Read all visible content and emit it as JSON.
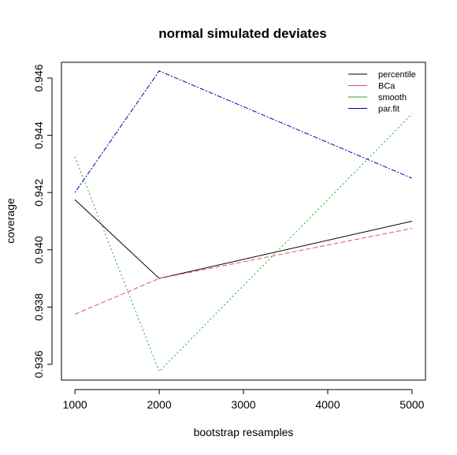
{
  "chart_data": {
    "type": "line",
    "title": "normal simulated deviates",
    "xlabel": "bootstrap resamples",
    "ylabel": "coverage",
    "x": [
      1000,
      2000,
      5000
    ],
    "x_ticks": [
      1000,
      2000,
      3000,
      4000,
      5000
    ],
    "x_tick_labels": [
      "1000",
      "2000",
      "3000",
      "4000",
      "5000"
    ],
    "y_ticks": [
      0.936,
      0.938,
      0.94,
      0.942,
      0.944,
      0.946
    ],
    "y_tick_labels": [
      "0.936",
      "0.938",
      "0.940",
      "0.942",
      "0.944",
      "0.946"
    ],
    "xlim": [
      840,
      5160
    ],
    "ylim": [
      0.93545,
      0.94655
    ],
    "grid": false,
    "legend_position": "top-right",
    "series": [
      {
        "name": "percentile",
        "color": "#000000",
        "dash": "solid",
        "values": [
          0.94175,
          0.939,
          0.941
        ]
      },
      {
        "name": "BCa",
        "color": "#DF536B",
        "dash": "dashed",
        "values": [
          0.93775,
          0.939,
          0.94075
        ]
      },
      {
        "name": "smooth",
        "color": "#22AA22",
        "dash": "dotted",
        "values": [
          0.94325,
          0.93575,
          0.94475
        ]
      },
      {
        "name": "par.fit",
        "color": "#0000AA",
        "dash": "dotdash",
        "values": [
          0.942,
          0.94625,
          0.9425
        ]
      }
    ]
  }
}
